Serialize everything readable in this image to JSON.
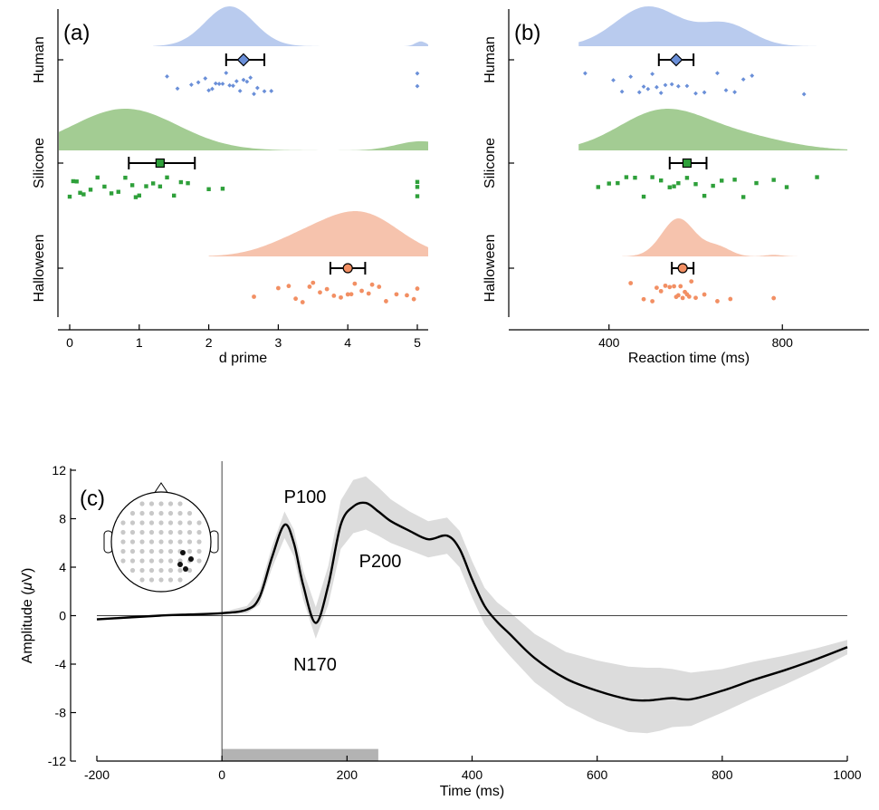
{
  "chart_data": [
    {
      "panel": "(a)",
      "type": "raincloud",
      "xlabel": "d prime",
      "xlim": [
        -0.2,
        5.2
      ],
      "xticks": [
        "0",
        "1",
        "2",
        "3",
        "4",
        "5"
      ],
      "groups": [
        {
          "name": "Human",
          "color": "#6a8fd8",
          "fill": "#b9cbee",
          "marker": "diamond",
          "mean": 2.5,
          "ci": [
            2.25,
            2.8
          ],
          "points": [
            1.4,
            1.55,
            1.75,
            1.85,
            1.95,
            2.0,
            2.05,
            2.1,
            2.15,
            2.2,
            2.25,
            2.3,
            2.35,
            2.4,
            2.45,
            2.5,
            2.55,
            2.6,
            2.65,
            2.7,
            2.8,
            2.9,
            5.0,
            5.0
          ]
        },
        {
          "name": "Silicone",
          "color": "#2ea03a",
          "fill": "#a3cc93",
          "marker": "square",
          "mean": 1.3,
          "ci": [
            0.85,
            1.8
          ],
          "points": [
            0.0,
            0.05,
            0.1,
            0.15,
            0.2,
            0.3,
            0.4,
            0.5,
            0.6,
            0.7,
            0.8,
            0.9,
            0.95,
            1.0,
            1.1,
            1.2,
            1.3,
            1.4,
            1.5,
            1.6,
            1.7,
            2.0,
            2.2,
            5.0,
            5.0,
            5.0
          ]
        },
        {
          "name": "Halloween",
          "color": "#f28f63",
          "fill": "#f6c3ad",
          "marker": "circle",
          "mean": 4.0,
          "ci": [
            3.75,
            4.25
          ],
          "points": [
            2.65,
            3.0,
            3.15,
            3.25,
            3.35,
            3.45,
            3.5,
            3.6,
            3.7,
            3.8,
            3.9,
            4.0,
            4.05,
            4.1,
            4.2,
            4.3,
            4.35,
            4.45,
            4.55,
            4.7,
            4.85,
            4.95,
            5.0
          ]
        }
      ]
    },
    {
      "panel": "(b)",
      "type": "raincloud",
      "xlabel": "Reaction time (ms)",
      "xlim": [
        200,
        1000
      ],
      "xticks": [
        "400",
        "800"
      ],
      "groups": [
        {
          "name": "Human",
          "color": "#6a8fd8",
          "fill": "#b9cbee",
          "marker": "diamond",
          "mean": 555,
          "ci": [
            515,
            595
          ],
          "points": [
            345,
            410,
            430,
            450,
            470,
            480,
            490,
            500,
            510,
            520,
            530,
            545,
            560,
            580,
            600,
            620,
            650,
            670,
            690,
            710,
            730,
            850
          ]
        },
        {
          "name": "Silicone",
          "color": "#2ea03a",
          "fill": "#a3cc93",
          "marker": "square",
          "mean": 580,
          "ci": [
            540,
            625
          ],
          "points": [
            375,
            400,
            420,
            440,
            460,
            480,
            500,
            520,
            540,
            550,
            560,
            580,
            600,
            620,
            640,
            660,
            690,
            710,
            740,
            780,
            810,
            880
          ]
        },
        {
          "name": "Halloween",
          "color": "#f28f63",
          "fill": "#f6c3ad",
          "marker": "circle",
          "mean": 570,
          "ci": [
            545,
            595
          ],
          "points": [
            450,
            480,
            500,
            510,
            520,
            530,
            540,
            550,
            555,
            560,
            565,
            570,
            575,
            580,
            585,
            590,
            600,
            620,
            650,
            680,
            780
          ]
        }
      ]
    },
    {
      "panel": "(c)",
      "type": "line",
      "xlabel": "Time (ms)",
      "ylabel_prefix": "Amplitude (",
      "ylabel_mu": "μ",
      "ylabel_suffix": "V)",
      "xlim": [
        -200,
        1000
      ],
      "ylim": [
        -12,
        12
      ],
      "xticks": [
        "-200",
        "0",
        "200",
        "400",
        "600",
        "800",
        "1000"
      ],
      "xtick_values": [
        -200,
        0,
        200,
        400,
        600,
        800,
        1000
      ],
      "yticks": [
        "-12",
        "-8",
        "-4",
        "0",
        "4",
        "8",
        "12"
      ],
      "ytick_values": [
        -12,
        -8,
        -4,
        0,
        4,
        8,
        12
      ],
      "annotations": [
        "P100",
        "N170",
        "P200"
      ],
      "stimulus_bar": [
        0,
        250
      ],
      "x": [
        -200,
        -150,
        -100,
        -50,
        0,
        40,
        60,
        80,
        100,
        115,
        130,
        150,
        170,
        190,
        210,
        230,
        250,
        270,
        300,
        330,
        360,
        380,
        400,
        420,
        440,
        460,
        500,
        550,
        600,
        650,
        680,
        700,
        720,
        750,
        800,
        850,
        900,
        950,
        1000
      ],
      "y": [
        -0.3,
        -0.15,
        0.0,
        0.1,
        0.2,
        0.5,
        1.5,
        4.8,
        7.5,
        6.0,
        2.5,
        -0.6,
        2.5,
        7.5,
        9.0,
        9.3,
        8.6,
        7.8,
        7.0,
        6.3,
        6.6,
        5.5,
        3.0,
        0.8,
        -0.5,
        -1.5,
        -3.5,
        -5.2,
        -6.2,
        -6.9,
        -7.0,
        -6.9,
        -6.8,
        -6.9,
        -6.2,
        -5.3,
        -4.5,
        -3.6,
        -2.6
      ],
      "band_halfwidth": [
        0.1,
        0.1,
        0.1,
        0.1,
        0.1,
        0.3,
        0.6,
        0.9,
        1.1,
        1.1,
        1.2,
        1.3,
        1.6,
        2.0,
        2.2,
        2.2,
        2.0,
        1.8,
        1.6,
        1.5,
        1.5,
        1.5,
        1.5,
        1.5,
        1.6,
        1.8,
        2.0,
        2.2,
        2.5,
        2.7,
        2.7,
        2.6,
        2.4,
        2.2,
        1.8,
        1.5,
        1.2,
        0.9,
        0.6
      ]
    }
  ],
  "colors": {
    "axis": "#000000",
    "band": "#dcdcdc",
    "stim": "#b3b3b3",
    "scalp_dot": "#c8c8c8",
    "scalp_active": "#111111"
  }
}
